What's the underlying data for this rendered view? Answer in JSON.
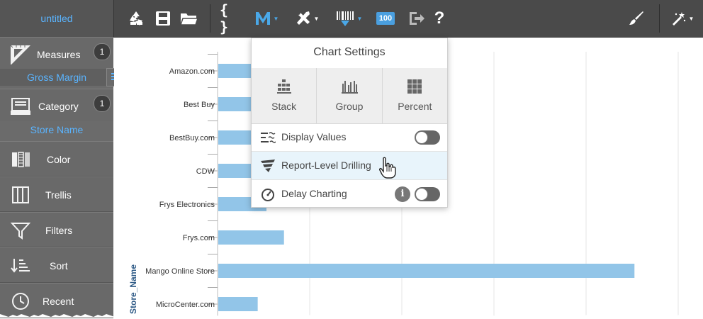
{
  "app": {
    "title": "untitled"
  },
  "toolbar": {
    "badge_100": "100",
    "help": "?",
    "braces": "{ }"
  },
  "sidebar": {
    "measures": {
      "label": "Measures",
      "count": "1",
      "field": "Gross Margin"
    },
    "category": {
      "label": "Category",
      "count": "1",
      "field": "Store Name"
    },
    "items": [
      {
        "label": "Color"
      },
      {
        "label": "Trellis"
      },
      {
        "label": "Filters"
      },
      {
        "label": "Sort"
      },
      {
        "label": "Recent"
      }
    ]
  },
  "popover": {
    "title": "Chart Settings",
    "layouts": [
      {
        "label": "Stack"
      },
      {
        "label": "Group"
      },
      {
        "label": "Percent"
      }
    ],
    "options": [
      {
        "label": "Display Values",
        "toggle": "off"
      },
      {
        "label": "Report-Level Drilling"
      },
      {
        "label": "Delay Charting",
        "toggle": "off",
        "info": "i"
      }
    ]
  },
  "colors": {
    "toolbar_bg": "#4a4a4a",
    "sidebar_bg": "#696969",
    "accent_blue": "#5ab4ff",
    "bar_fill": "#92c5e8",
    "toggle_off": "#666666"
  },
  "chart_data": {
    "type": "bar",
    "orientation": "horizontal",
    "categories": [
      "Amazon.com",
      "Best Buy",
      "BestBuy.com",
      "CDW",
      "Frys Electronics",
      "Frys.com",
      "Mango Online Store",
      "MicroCenter.com"
    ],
    "values": [
      8,
      8,
      8,
      8,
      11,
      15,
      95,
      9
    ],
    "ylabel": "Store_Name",
    "xlim": [
      0,
      110
    ],
    "grid": true,
    "series": [
      {
        "values": [
          8,
          8,
          8,
          8,
          11,
          15,
          95,
          9
        ]
      }
    ]
  }
}
